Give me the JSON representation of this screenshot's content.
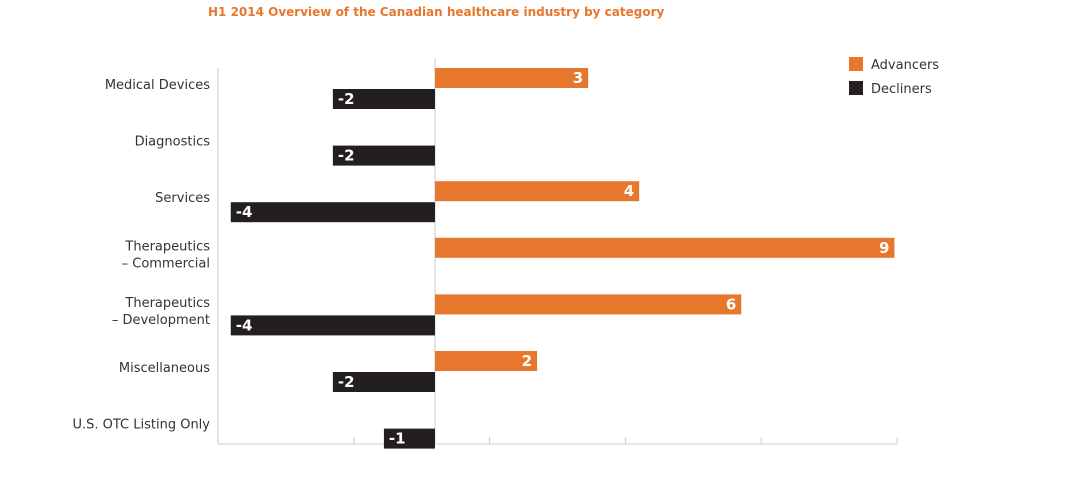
{
  "chart_data": {
    "type": "bar",
    "orientation": "horizontal",
    "title": "H1 2014 Overview of the Canadian healthcare industry by category",
    "categories": [
      [
        "Medical Devices"
      ],
      [
        "Diagnostics"
      ],
      [
        "Services"
      ],
      [
        "Therapeutics",
        "– Commercial"
      ],
      [
        "Therapeutics",
        "– Development"
      ],
      [
        "Miscellaneous"
      ],
      [
        "U.S. OTC Listing Only"
      ]
    ],
    "series": [
      {
        "name": "Advancers",
        "color": "#E8772E",
        "values": [
          3,
          null,
          4,
          9,
          6,
          2,
          null
        ],
        "labels": [
          "3",
          null,
          "4",
          "9",
          "6",
          "2",
          null
        ]
      },
      {
        "name": "Decliners",
        "color": "#231F20",
        "values": [
          -2,
          -2,
          -4,
          null,
          -4,
          -2,
          -1
        ],
        "labels": [
          "-2",
          "-2",
          "-4",
          null,
          "-4",
          "-2",
          "-1"
        ]
      }
    ],
    "xlim": [
      -4.25,
      9.05
    ],
    "grid": false,
    "legend_position": "top-right",
    "axis_color": "#cccccc"
  }
}
